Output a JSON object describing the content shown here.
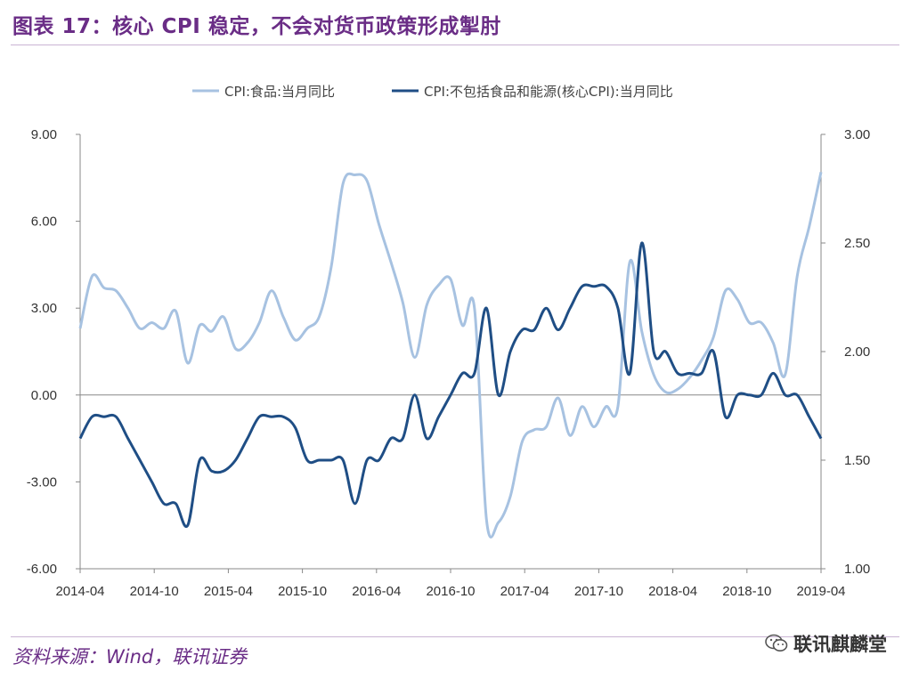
{
  "figure": {
    "title": "图表 17：核心 CPI 稳定，不会对货币政策形成掣肘",
    "source": "资料来源：Wind，联讯证券",
    "watermark": "联讯麒麟堂",
    "watermark_icon": "wechat-icon"
  },
  "chart_data": {
    "type": "line",
    "legend_position": "top",
    "grid": false,
    "x_start": "2014-04",
    "x_end": "2019-04",
    "x_ticks": [
      "2014-04",
      "2014-10",
      "2015-04",
      "2015-10",
      "2016-04",
      "2016-10",
      "2017-04",
      "2017-10",
      "2018-04",
      "2018-10",
      "2019-04"
    ],
    "y_left": {
      "min": -6,
      "max": 9,
      "ticks": [
        "9.00",
        "6.00",
        "3.00",
        "0.00",
        "-3.00",
        "-6.00"
      ]
    },
    "y_right": {
      "min": 1.0,
      "max": 3.0,
      "ticks": [
        "3.00",
        "2.50",
        "2.00",
        "1.50",
        "1.00"
      ]
    },
    "series": [
      {
        "name": "CPI:食品:当月同比",
        "axis": "left",
        "color": "#a7c2e1",
        "values": [
          2.3,
          4.1,
          3.7,
          3.6,
          3.0,
          2.3,
          2.5,
          2.3,
          2.9,
          1.1,
          2.4,
          2.2,
          2.7,
          1.6,
          1.8,
          2.5,
          3.6,
          2.7,
          1.9,
          2.3,
          2.7,
          4.4,
          7.3,
          7.6,
          7.4,
          5.9,
          4.6,
          3.2,
          1.3,
          3.1,
          3.8,
          4.0,
          2.4,
          3.0,
          -4.3,
          -4.4,
          -3.5,
          -1.6,
          -1.2,
          -1.1,
          -0.1,
          -1.4,
          -0.4,
          -1.1,
          -0.4,
          -0.4,
          4.6,
          2.2,
          0.7,
          0.1,
          0.2,
          0.6,
          1.2,
          2.0,
          3.6,
          3.3,
          2.5,
          2.5,
          1.8,
          0.7,
          4.1,
          5.8,
          7.7
        ]
      },
      {
        "name": "CPI:不包括食品和能源(核心CPI):当月同比",
        "axis": "right",
        "color": "#1f4e85",
        "values": [
          1.6,
          1.7,
          1.7,
          1.7,
          1.6,
          1.5,
          1.4,
          1.3,
          1.3,
          1.2,
          1.5,
          1.45,
          1.45,
          1.5,
          1.6,
          1.7,
          1.7,
          1.7,
          1.65,
          1.5,
          1.5,
          1.5,
          1.5,
          1.3,
          1.5,
          1.5,
          1.6,
          1.6,
          1.8,
          1.6,
          1.7,
          1.8,
          1.9,
          1.9,
          2.2,
          1.8,
          2.0,
          2.1,
          2.1,
          2.2,
          2.1,
          2.2,
          2.3,
          2.3,
          2.3,
          2.2,
          1.9,
          2.5,
          2.0,
          2.0,
          1.9,
          1.9,
          1.9,
          2.0,
          1.7,
          1.8,
          1.8,
          1.8,
          1.9,
          1.8,
          1.8,
          1.7,
          1.6
        ]
      }
    ]
  }
}
